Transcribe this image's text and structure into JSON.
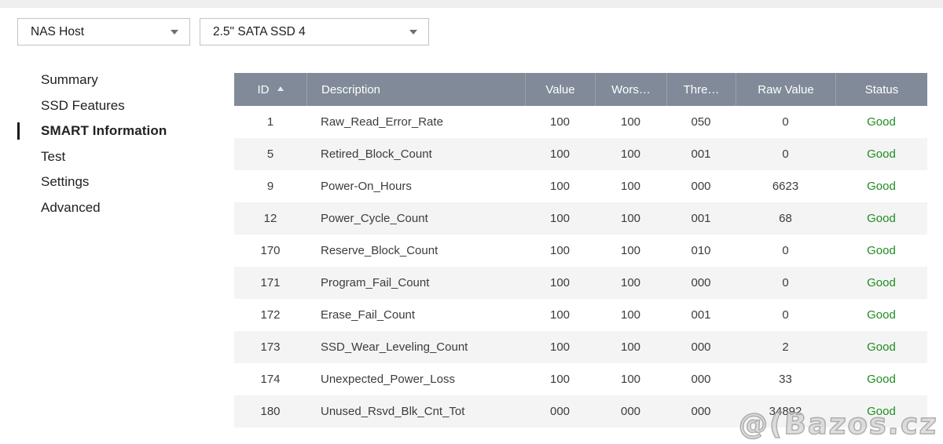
{
  "toolbar": {
    "host_select": {
      "value": "NAS Host"
    },
    "device_select": {
      "value": "2.5\" SATA SSD 4"
    }
  },
  "sidebar": {
    "items": [
      {
        "label": "Summary",
        "active": false
      },
      {
        "label": "SSD Features",
        "active": false
      },
      {
        "label": "SMART Information",
        "active": true
      },
      {
        "label": "Test",
        "active": false
      },
      {
        "label": "Settings",
        "active": false
      },
      {
        "label": "Advanced",
        "active": false
      }
    ]
  },
  "table": {
    "columns": [
      {
        "label": "ID",
        "key": "id",
        "align": "center",
        "sorted": "asc"
      },
      {
        "label": "Description",
        "key": "description",
        "align": "left"
      },
      {
        "label": "Value",
        "key": "value",
        "align": "center"
      },
      {
        "label": "Wors…",
        "key": "worst",
        "align": "center"
      },
      {
        "label": "Thre…",
        "key": "threshold",
        "align": "center"
      },
      {
        "label": "Raw Value",
        "key": "raw_value",
        "align": "center"
      },
      {
        "label": "Status",
        "key": "status",
        "align": "center"
      }
    ],
    "rows": [
      {
        "id": "1",
        "description": "Raw_Read_Error_Rate",
        "value": "100",
        "worst": "100",
        "threshold": "050",
        "raw_value": "0",
        "status": "Good"
      },
      {
        "id": "5",
        "description": "Retired_Block_Count",
        "value": "100",
        "worst": "100",
        "threshold": "001",
        "raw_value": "0",
        "status": "Good"
      },
      {
        "id": "9",
        "description": "Power-On_Hours",
        "value": "100",
        "worst": "100",
        "threshold": "000",
        "raw_value": "6623",
        "status": "Good"
      },
      {
        "id": "12",
        "description": "Power_Cycle_Count",
        "value": "100",
        "worst": "100",
        "threshold": "001",
        "raw_value": "68",
        "status": "Good"
      },
      {
        "id": "170",
        "description": "Reserve_Block_Count",
        "value": "100",
        "worst": "100",
        "threshold": "010",
        "raw_value": "0",
        "status": "Good"
      },
      {
        "id": "171",
        "description": "Program_Fail_Count",
        "value": "100",
        "worst": "100",
        "threshold": "000",
        "raw_value": "0",
        "status": "Good"
      },
      {
        "id": "172",
        "description": "Erase_Fail_Count",
        "value": "100",
        "worst": "100",
        "threshold": "001",
        "raw_value": "0",
        "status": "Good"
      },
      {
        "id": "173",
        "description": "SSD_Wear_Leveling_Count",
        "value": "100",
        "worst": "100",
        "threshold": "000",
        "raw_value": "2",
        "status": "Good"
      },
      {
        "id": "174",
        "description": "Unexpected_Power_Loss",
        "value": "100",
        "worst": "100",
        "threshold": "000",
        "raw_value": "33",
        "status": "Good"
      },
      {
        "id": "180",
        "description": "Unused_Rsvd_Blk_Cnt_Tot",
        "value": "000",
        "worst": "000",
        "threshold": "000",
        "raw_value": "34892",
        "status": "Good"
      }
    ],
    "status_good_color": "#1f8c1f",
    "header_bg_color": "#818a98"
  },
  "watermark": {
    "text": "@(Bazos.cz"
  }
}
